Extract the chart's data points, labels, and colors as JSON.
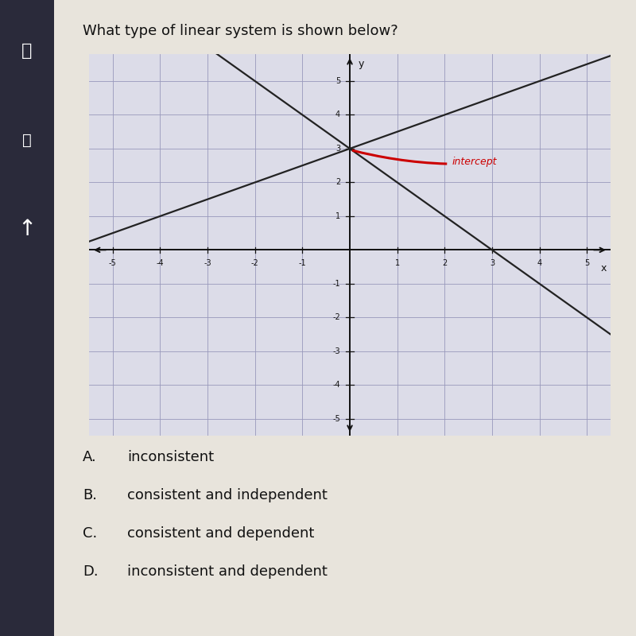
{
  "title": "What type of linear system is shown below?",
  "title_fontsize": 13,
  "page_bg": "#e8e4dc",
  "sidebar_color": "#2a2a3a",
  "graph_bg": "#dcdce8",
  "grid_color": "#9999bb",
  "axis_color": "#111111",
  "line1_slope": -1.0,
  "line1_intercept": 3.0,
  "line2_slope": 0.5,
  "line2_intercept": 3.0,
  "intercept_point": [
    0,
    3
  ],
  "intercept_label": "intercept",
  "intercept_label_color": "#cc0000",
  "intercept_arrow_color": "#cc0000",
  "xlim": [
    -5.5,
    5.5
  ],
  "ylim": [
    -5.5,
    5.8
  ],
  "xticks": [
    -5,
    -4,
    -3,
    -2,
    -1,
    1,
    2,
    3,
    4,
    5
  ],
  "yticks": [
    -5,
    -4,
    -3,
    -2,
    -1,
    1,
    2,
    3,
    4,
    5
  ],
  "xlabel": "x",
  "ylabel": "y",
  "line_color": "#222222",
  "line_width": 1.6,
  "choices": [
    [
      "A.",
      "inconsistent"
    ],
    [
      "B.",
      "consistent and independent"
    ],
    [
      "C.",
      "consistent and dependent"
    ],
    [
      "D.",
      "inconsistent and dependent"
    ]
  ],
  "choices_fontsize": 13
}
